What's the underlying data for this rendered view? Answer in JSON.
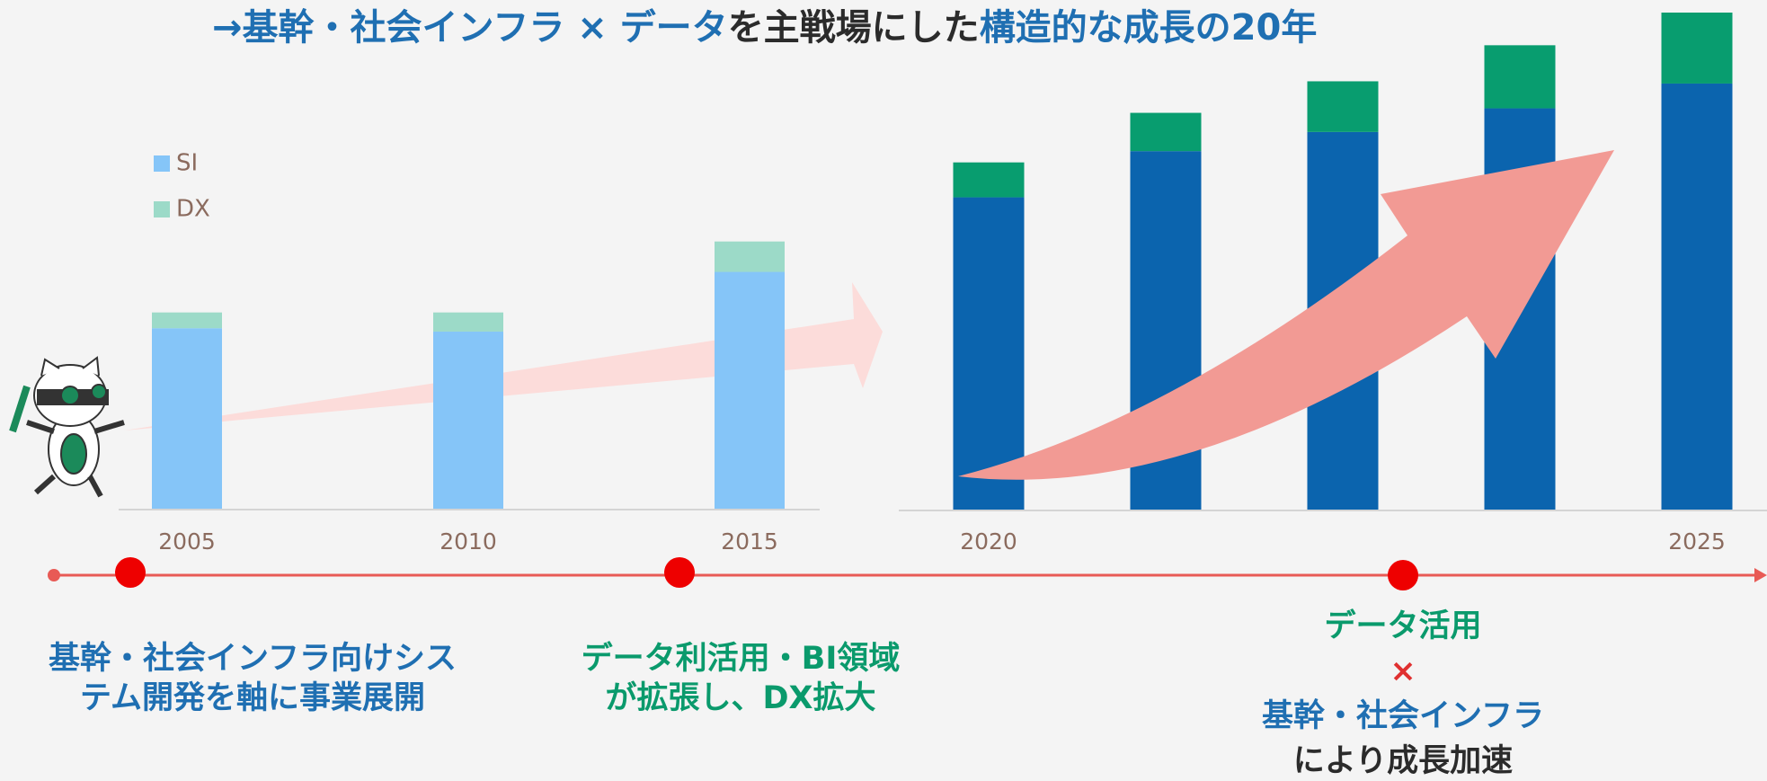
{
  "title_parts": [
    {
      "text": "→基幹・社会インフラ × データ",
      "color": "#1f6fb2"
    },
    {
      "text": "を主戦場にした",
      "color": "#2b2b2b"
    },
    {
      "text": "構造的な成長の20年",
      "color": "#1f6fb2"
    }
  ],
  "chart_data": [
    {
      "type": "bar",
      "stacked": true,
      "legend": "upper-left",
      "categories": [
        "2005",
        "2010",
        "2015"
      ],
      "ylim": [
        0,
        442
      ],
      "series": [
        {
          "name": "SI",
          "color": "#85c5f8",
          "values": [
            161,
            158,
            211
          ]
        },
        {
          "name": "DX",
          "color": "#9cdac8",
          "values": [
            14,
            17,
            27
          ]
        }
      ]
    },
    {
      "type": "bar",
      "stacked": true,
      "categories": [
        "2020",
        null,
        null,
        null,
        "2025"
      ],
      "ylim": [
        0,
        442
      ],
      "series": [
        {
          "name": "SI",
          "color": "#0b64ae",
          "values": [
            278,
            319,
            336,
            357,
            379
          ]
        },
        {
          "name": "DX",
          "color": "#089d6f",
          "values": [
            31,
            34,
            45,
            56,
            63
          ]
        }
      ]
    }
  ],
  "annotations": [
    {
      "lines": [
        "基幹・社会インフラ向けシス",
        "テム開発を軸に事業展開"
      ]
    },
    {
      "lines": [
        "データ利活用・BI領域",
        "が拡張し、DX拡大"
      ]
    },
    {
      "lines": [
        "データ活用",
        "×",
        "基幹・社会インフラ",
        "により成長加速"
      ]
    }
  ]
}
